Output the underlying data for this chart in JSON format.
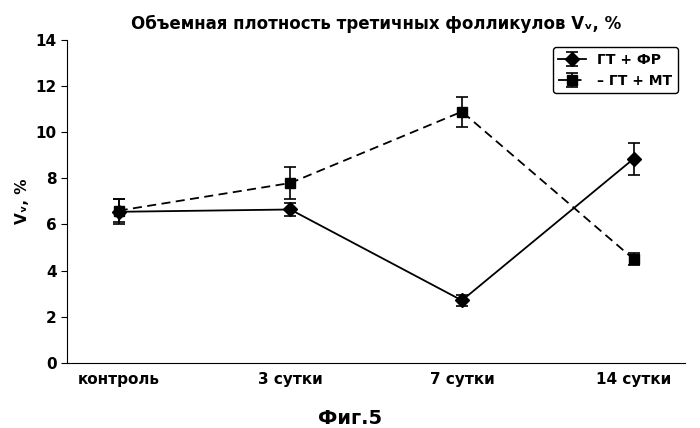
{
  "title": "Объемная плотность третичных фолликулов Vᵥ, %",
  "ylabel": "Vᵥ, %",
  "xlabel_fig": "Фиг.5",
  "categories": [
    "контроль",
    "3 сутки",
    "7 сутки",
    "14 сутки"
  ],
  "series1_label": "ГТ + ФР",
  "series1_values": [
    6.55,
    6.65,
    2.7,
    8.85
  ],
  "series1_errors": [
    0.55,
    0.3,
    0.25,
    0.7
  ],
  "series1_color": "#000000",
  "series1_linestyle": "-",
  "series1_marker": "o",
  "series2_label": "– ГТ + МТ",
  "series2_values": [
    6.6,
    7.8,
    10.9,
    4.5
  ],
  "series2_errors": [
    0.5,
    0.7,
    0.65,
    0.25
  ],
  "series2_color": "#000000",
  "series2_linestyle": "--",
  "series2_marker": "s",
  "ylim": [
    0,
    14
  ],
  "yticks": [
    0,
    2,
    4,
    6,
    8,
    10,
    12,
    14
  ],
  "background_color": "#ffffff",
  "title_fontsize": 12,
  "axis_fontsize": 11,
  "tick_fontsize": 11,
  "legend_fontsize": 10,
  "figcaption_fontsize": 14
}
